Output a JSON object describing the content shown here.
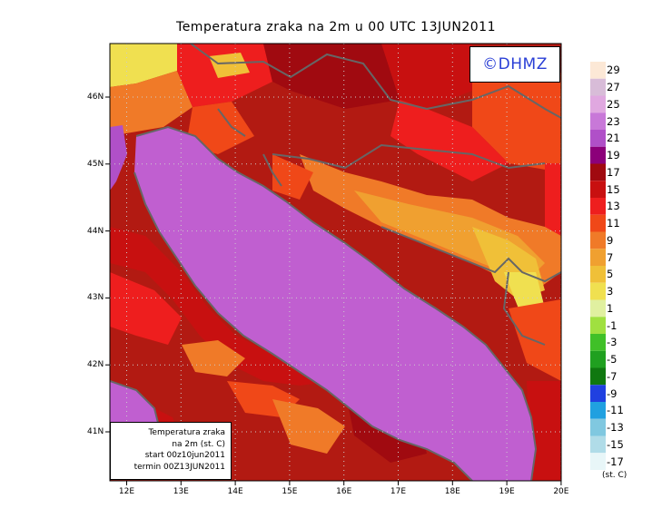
{
  "title": "Temperatura zraka na 2m u 00 UTC 13JUN2011",
  "copyright": "©DHMZ",
  "info_box": {
    "line1": "Temperatura zraka",
    "line2": "na 2m (st. C)",
    "line3": "start 00z10jun2011",
    "line4": "termin 00Z13JUN2011"
  },
  "longitude_labels": [
    "12E",
    "13E",
    "14E",
    "15E",
    "16E",
    "17E",
    "18E",
    "19E",
    "20E"
  ],
  "latitude_labels": [
    "46N",
    "45N",
    "44N",
    "43N",
    "42N",
    "41N"
  ],
  "colorbar": {
    "unit": "(st. C)",
    "labels": [
      "29",
      "27",
      "25",
      "23",
      "21",
      "19",
      "17",
      "15",
      "13",
      "11",
      "9",
      "7",
      "5",
      "3",
      "1",
      "-1",
      "-3",
      "-5",
      "-7",
      "-9",
      "-11",
      "-13",
      "-15",
      "-17"
    ],
    "colors": [
      "#fce8d6",
      "#d8bcd8",
      "#e0a8e0",
      "#c878d8",
      "#b050c8",
      "#8c007a",
      "#a00a10",
      "#c81010",
      "#ee1e1e",
      "#f04818",
      "#f07a28",
      "#f0a030",
      "#f0c038",
      "#f0e050",
      "#e0f0a0",
      "#a0e040",
      "#40c028",
      "#20a020",
      "#107810",
      "#2040e0",
      "#20a0e0",
      "#80c8e0",
      "#b0dce8",
      "#e8f6f8"
    ]
  },
  "colors": {
    "sea": "#c05fd0",
    "land_base": "#b21a12",
    "coastline": "#666666",
    "title_text": "#000000",
    "copyright_text": "#2a3fd6"
  }
}
